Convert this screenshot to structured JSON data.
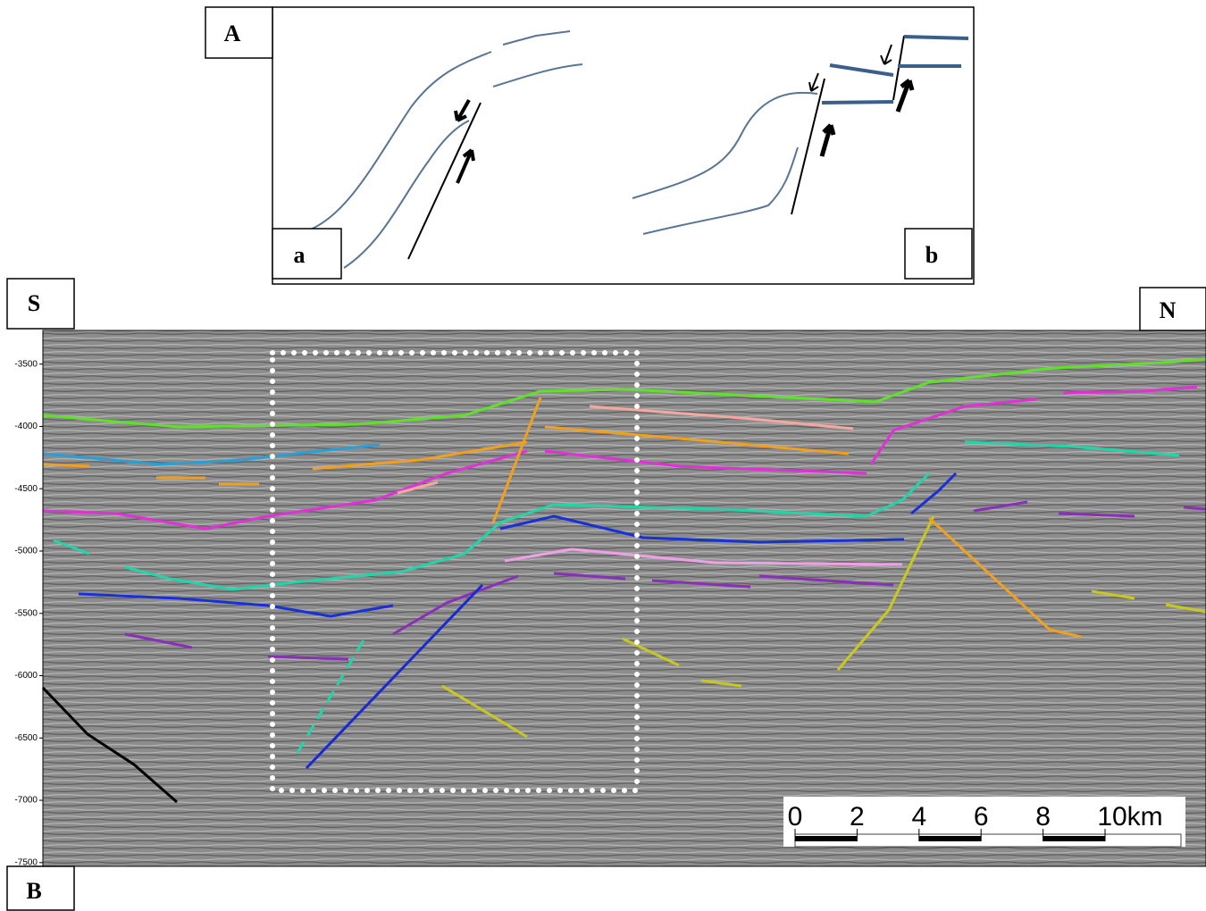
{
  "panel_a": {
    "label": "A",
    "sub_a": "a",
    "sub_b": "b"
  },
  "panel_b": {
    "label": "B",
    "south": "S",
    "north": "N",
    "depth_axis": {
      "ylim": [
        -3230,
        -7530
      ],
      "yticks": [
        -3500,
        -4000,
        -4500,
        -5000,
        -5500,
        -6000,
        -6500,
        -7000,
        -7500
      ]
    },
    "scale_bar": {
      "ticks": [
        0,
        2,
        4,
        6,
        8,
        {
          "value": 10,
          "label": "10km"
        }
      ]
    }
  }
}
